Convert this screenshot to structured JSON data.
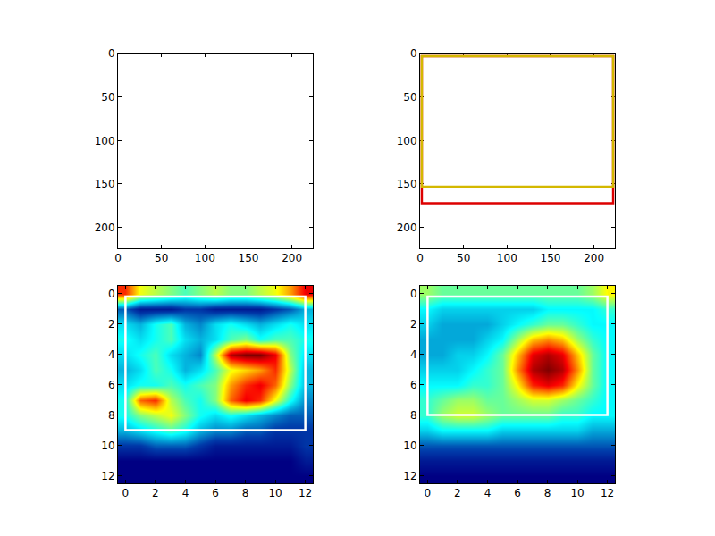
{
  "chart_data": [
    {
      "type": "image",
      "xlim": [
        0,
        224
      ],
      "ylim": [
        224,
        0
      ],
      "xticks": [
        0,
        50,
        100,
        150,
        200
      ],
      "yticks": [
        0,
        50,
        100,
        150,
        200
      ],
      "boxes": []
    },
    {
      "type": "image",
      "xlim": [
        0,
        224
      ],
      "ylim": [
        224,
        0
      ],
      "xticks": [
        0,
        50,
        100,
        150,
        200
      ],
      "yticks": [
        0,
        50,
        100,
        150,
        200
      ],
      "boxes": [
        {
          "color": "#dd0000",
          "x0": 2,
          "y0": 3,
          "x1": 222,
          "y1": 172
        },
        {
          "color": "#d4b800",
          "x0": 2,
          "y0": 3,
          "x1": 222,
          "y1": 153
        }
      ]
    },
    {
      "type": "heatmap",
      "xlim": [
        -0.5,
        12.5
      ],
      "ylim": [
        12.5,
        -0.5
      ],
      "xticks": [
        0,
        2,
        4,
        6,
        8,
        10,
        12
      ],
      "yticks": [
        0,
        2,
        4,
        6,
        8,
        10,
        12
      ],
      "x": [
        0,
        1,
        2,
        3,
        4,
        5,
        6,
        7,
        8,
        9,
        10,
        11,
        12
      ],
      "y": [
        0,
        1,
        2,
        3,
        4,
        5,
        6,
        7,
        8,
        9,
        10,
        11,
        12
      ],
      "cells": [
        [
          0.8,
          0.6,
          0.55,
          0.5,
          0.45,
          0.5,
          0.55,
          0.5,
          0.5,
          0.55,
          0.6,
          0.7,
          0.85
        ],
        [
          0.2,
          0.1,
          0.1,
          0.1,
          0.15,
          0.15,
          0.1,
          0.1,
          0.1,
          0.1,
          0.15,
          0.2,
          0.3
        ],
        [
          0.35,
          0.3,
          0.4,
          0.45,
          0.3,
          0.25,
          0.35,
          0.4,
          0.35,
          0.3,
          0.35,
          0.4,
          0.35
        ],
        [
          0.4,
          0.35,
          0.4,
          0.45,
          0.35,
          0.3,
          0.35,
          0.45,
          0.5,
          0.4,
          0.45,
          0.45,
          0.4
        ],
        [
          0.35,
          0.4,
          0.45,
          0.35,
          0.3,
          0.25,
          0.55,
          0.9,
          0.95,
          0.95,
          0.85,
          0.5,
          0.35
        ],
        [
          0.3,
          0.35,
          0.45,
          0.4,
          0.3,
          0.35,
          0.45,
          0.6,
          0.65,
          0.7,
          0.8,
          0.55,
          0.3
        ],
        [
          0.35,
          0.4,
          0.4,
          0.45,
          0.4,
          0.45,
          0.5,
          0.7,
          0.8,
          0.85,
          0.75,
          0.5,
          0.3
        ],
        [
          0.4,
          0.75,
          0.8,
          0.55,
          0.45,
          0.4,
          0.5,
          0.75,
          0.85,
          0.8,
          0.6,
          0.4,
          0.25
        ],
        [
          0.4,
          0.5,
          0.55,
          0.6,
          0.5,
          0.4,
          0.35,
          0.4,
          0.35,
          0.3,
          0.25,
          0.2,
          0.2
        ],
        [
          0.3,
          0.35,
          0.4,
          0.45,
          0.4,
          0.3,
          0.25,
          0.25,
          0.2,
          0.2,
          0.15,
          0.15,
          0.15
        ],
        [
          0.15,
          0.15,
          0.2,
          0.2,
          0.2,
          0.15,
          0.1,
          0.1,
          0.1,
          0.1,
          0.1,
          0.1,
          0.15
        ],
        [
          0.05,
          0.05,
          0.05,
          0.05,
          0.05,
          0.05,
          0.05,
          0.05,
          0.05,
          0.05,
          0.05,
          0.05,
          0.1
        ],
        [
          0.05,
          0.05,
          0.05,
          0.05,
          0.05,
          0.05,
          0.05,
          0.05,
          0.05,
          0.05,
          0.05,
          0.05,
          0.05
        ]
      ],
      "boxes": [
        {
          "color": "#ffffff",
          "x0": 0,
          "y0": 0.2,
          "x1": 12,
          "y1": 9
        }
      ]
    },
    {
      "type": "heatmap",
      "xlim": [
        -0.5,
        12.5
      ],
      "ylim": [
        12.5,
        -0.5
      ],
      "xticks": [
        0,
        2,
        4,
        6,
        8,
        10,
        12
      ],
      "yticks": [
        0,
        2,
        4,
        6,
        8,
        10,
        12
      ],
      "x": [
        0,
        1,
        2,
        3,
        4,
        5,
        6,
        7,
        8,
        9,
        10,
        11,
        12
      ],
      "y": [
        0,
        1,
        2,
        3,
        4,
        5,
        6,
        7,
        8,
        9,
        10,
        11,
        12
      ],
      "cells": [
        [
          0.55,
          0.5,
          0.5,
          0.5,
          0.5,
          0.5,
          0.5,
          0.5,
          0.5,
          0.5,
          0.5,
          0.55,
          0.65
        ],
        [
          0.4,
          0.35,
          0.35,
          0.35,
          0.35,
          0.35,
          0.35,
          0.35,
          0.4,
          0.4,
          0.4,
          0.4,
          0.45
        ],
        [
          0.35,
          0.3,
          0.3,
          0.3,
          0.3,
          0.35,
          0.4,
          0.45,
          0.5,
          0.5,
          0.45,
          0.4,
          0.4
        ],
        [
          0.3,
          0.3,
          0.3,
          0.3,
          0.35,
          0.4,
          0.55,
          0.7,
          0.75,
          0.7,
          0.55,
          0.45,
          0.4
        ],
        [
          0.3,
          0.3,
          0.35,
          0.35,
          0.4,
          0.5,
          0.7,
          0.9,
          0.95,
          0.9,
          0.7,
          0.5,
          0.4
        ],
        [
          0.35,
          0.35,
          0.35,
          0.4,
          0.45,
          0.5,
          0.75,
          0.95,
          1.0,
          0.95,
          0.75,
          0.5,
          0.4
        ],
        [
          0.4,
          0.4,
          0.4,
          0.45,
          0.45,
          0.5,
          0.65,
          0.85,
          0.9,
          0.85,
          0.65,
          0.5,
          0.4
        ],
        [
          0.45,
          0.5,
          0.55,
          0.55,
          0.5,
          0.5,
          0.55,
          0.6,
          0.6,
          0.55,
          0.5,
          0.45,
          0.4
        ],
        [
          0.45,
          0.55,
          0.6,
          0.6,
          0.55,
          0.5,
          0.5,
          0.5,
          0.5,
          0.45,
          0.45,
          0.4,
          0.4
        ],
        [
          0.35,
          0.4,
          0.4,
          0.4,
          0.4,
          0.35,
          0.35,
          0.35,
          0.35,
          0.35,
          0.35,
          0.3,
          0.3
        ],
        [
          0.2,
          0.2,
          0.2,
          0.2,
          0.2,
          0.2,
          0.2,
          0.2,
          0.2,
          0.2,
          0.2,
          0.2,
          0.2
        ],
        [
          0.1,
          0.1,
          0.1,
          0.1,
          0.1,
          0.1,
          0.1,
          0.1,
          0.1,
          0.1,
          0.1,
          0.1,
          0.1
        ],
        [
          0.05,
          0.05,
          0.05,
          0.05,
          0.05,
          0.05,
          0.05,
          0.05,
          0.05,
          0.05,
          0.05,
          0.05,
          0.05
        ]
      ],
      "boxes": [
        {
          "color": "#ffffff",
          "x0": 0,
          "y0": 0.2,
          "x1": 12,
          "y1": 8
        }
      ]
    }
  ]
}
